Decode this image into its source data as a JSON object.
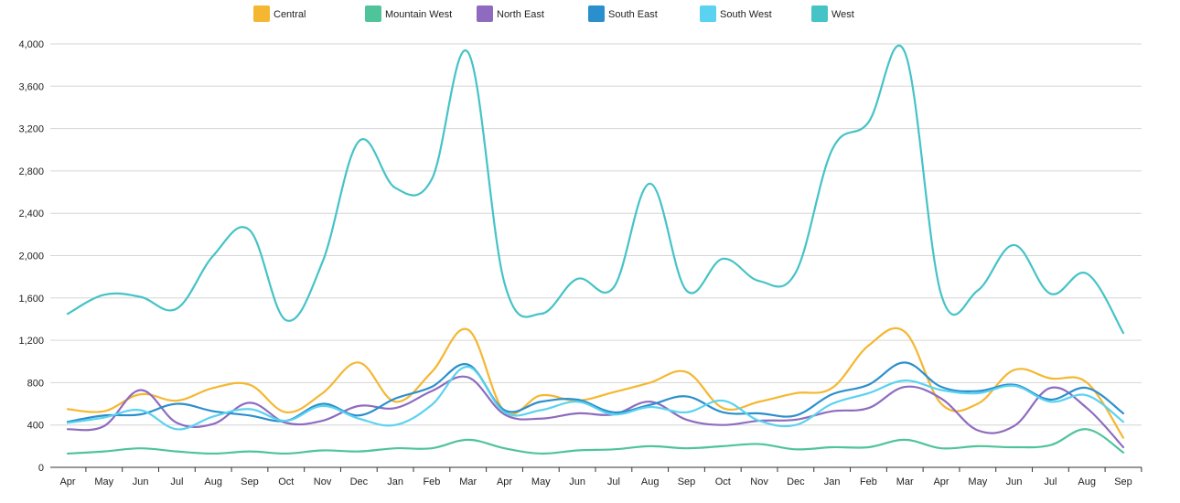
{
  "chart_data": {
    "type": "line",
    "title": "",
    "xlabel": "",
    "ylabel": "",
    "ylim": [
      0,
      4000
    ],
    "yticks": [
      0,
      400,
      800,
      1200,
      1600,
      2000,
      2400,
      2800,
      3200,
      3600,
      4000
    ],
    "ytick_labels": [
      "0",
      "400",
      "800",
      "1,200",
      "1,600",
      "2,000",
      "2,400",
      "2,800",
      "3,200",
      "3,600",
      "4,000"
    ],
    "grid": true,
    "legend_position": "top",
    "categories": [
      "Apr",
      "May",
      "Jun",
      "Jul",
      "Aug",
      "Sep",
      "Oct",
      "Nov",
      "Dec",
      "Jan",
      "Feb",
      "Mar",
      "Apr",
      "May",
      "Jun",
      "Jul",
      "Aug",
      "Sep",
      "Oct",
      "Nov",
      "Dec",
      "Jan",
      "Feb",
      "Mar",
      "Apr",
      "May",
      "Jun",
      "Jul",
      "Aug",
      "Sep"
    ],
    "series": [
      {
        "name": "Central",
        "color": "#f5b731",
        "values": [
          550,
          530,
          690,
          630,
          750,
          780,
          520,
          700,
          990,
          620,
          900,
          1300,
          530,
          680,
          630,
          710,
          800,
          900,
          560,
          620,
          700,
          750,
          1150,
          1280,
          600,
          600,
          920,
          840,
          800,
          280
        ]
      },
      {
        "name": "Mountain West",
        "color": "#4fc49a",
        "values": [
          130,
          150,
          180,
          150,
          130,
          150,
          130,
          160,
          150,
          180,
          180,
          260,
          180,
          130,
          160,
          170,
          200,
          180,
          200,
          220,
          170,
          190,
          190,
          260,
          180,
          200,
          190,
          210,
          360,
          140
        ]
      },
      {
        "name": "North East",
        "color": "#8e6bbf",
        "values": [
          360,
          390,
          730,
          420,
          410,
          610,
          420,
          440,
          580,
          560,
          720,
          850,
          500,
          460,
          510,
          500,
          620,
          450,
          400,
          440,
          450,
          530,
          560,
          760,
          650,
          350,
          390,
          750,
          560,
          190
        ]
      },
      {
        "name": "South East",
        "color": "#2b8fcd",
        "values": [
          430,
          490,
          500,
          600,
          530,
          490,
          440,
          600,
          490,
          650,
          760,
          970,
          540,
          620,
          640,
          520,
          590,
          670,
          520,
          510,
          490,
          690,
          780,
          990,
          760,
          720,
          780,
          640,
          750,
          510
        ]
      },
      {
        "name": "South West",
        "color": "#5ad2f0",
        "values": [
          420,
          470,
          540,
          360,
          480,
          550,
          440,
          580,
          460,
          400,
          590,
          950,
          520,
          540,
          620,
          500,
          570,
          520,
          630,
          440,
          400,
          600,
          700,
          820,
          730,
          700,
          770,
          620,
          680,
          430
        ]
      },
      {
        "name": "West",
        "color": "#45c3c7",
        "values": [
          1450,
          1630,
          1610,
          1500,
          2000,
          2240,
          1390,
          1940,
          3080,
          2640,
          2720,
          3920,
          1740,
          1450,
          1780,
          1700,
          2680,
          1670,
          1970,
          1760,
          1840,
          3000,
          3260,
          3920,
          1630,
          1670,
          2100,
          1640,
          1830,
          1270
        ]
      }
    ]
  }
}
